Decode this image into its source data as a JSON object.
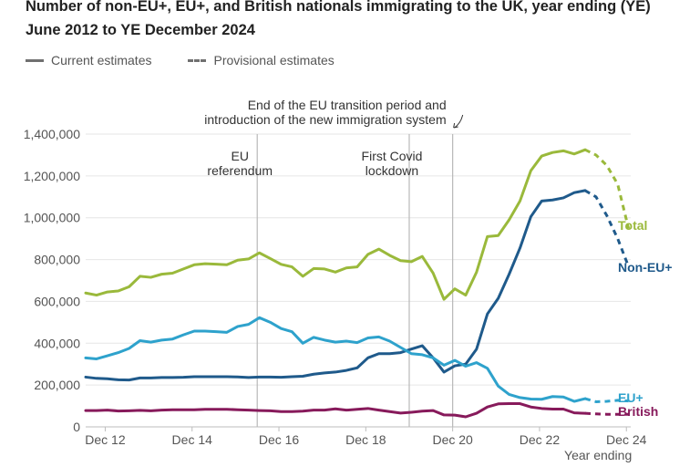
{
  "title": "Number of non-EU+, EU+, and British nationals immigrating to the UK, year ending (YE) June 2012 to YE December 2024",
  "legend": {
    "current": "Current estimates",
    "provisional": "Provisional estimates"
  },
  "chart_data": {
    "type": "line",
    "title": "Number of non-EU+, EU+, and British nationals immigrating to the UK, year ending (YE) June 2012 to YE December 2024",
    "xlabel": "Year ending",
    "ylabel": "",
    "ylim": [
      0,
      1400000
    ],
    "yticks": [
      0,
      200000,
      400000,
      600000,
      800000,
      1000000,
      1200000,
      1400000
    ],
    "ytick_labels": [
      "0",
      "200,000",
      "400,000",
      "600,000",
      "800,000",
      "1,000,000",
      "1,200,000",
      "1,400,000"
    ],
    "x_start": 2012.5,
    "x_step": 0.25,
    "xticks": [
      2012.95,
      2014.95,
      2016.95,
      2018.95,
      2020.95,
      2022.95,
      2024.95
    ],
    "xtick_labels": [
      "Dec 12",
      "Dec 14",
      "Dec 16",
      "Dec 18",
      "Dec 20",
      "Dec 22",
      "Dec 24"
    ],
    "series": [
      {
        "name": "Total",
        "color": "#9ab93b",
        "values": [
          640000,
          630000,
          645000,
          650000,
          670000,
          720000,
          715000,
          730000,
          735000,
          755000,
          775000,
          780000,
          778000,
          775000,
          797000,
          803000,
          832000,
          805000,
          777000,
          765000,
          720000,
          757000,
          755000,
          740000,
          760000,
          765000,
          825000,
          850000,
          820000,
          795000,
          790000,
          815000,
          735000,
          610000,
          660000,
          630000,
          740000,
          910000,
          915000,
          990000,
          1080000,
          1225000,
          1295000,
          1312000,
          1320000,
          1305000,
          1325000
        ],
        "provisional": [
          1325000,
          1300000,
          1250000,
          1160000,
          948000
        ]
      },
      {
        "name": "Non-EU+",
        "color": "#1f5a8b",
        "values": [
          238000,
          232000,
          230000,
          225000,
          224000,
          234000,
          234000,
          236000,
          236000,
          237000,
          240000,
          240000,
          240000,
          240000,
          239000,
          236000,
          238000,
          238000,
          237000,
          240000,
          242000,
          252000,
          258000,
          262000,
          270000,
          282000,
          330000,
          350000,
          350000,
          355000,
          372000,
          388000,
          330000,
          262000,
          292000,
          300000,
          372000,
          540000,
          615000,
          730000,
          855000,
          1005000,
          1080000,
          1085000,
          1095000,
          1120000,
          1130000
        ],
        "provisional": [
          1130000,
          1100000,
          1010000,
          900000,
          766000
        ]
      },
      {
        "name": "EU+",
        "color": "#2ea2cc",
        "values": [
          330000,
          325000,
          340000,
          355000,
          375000,
          412000,
          405000,
          415000,
          420000,
          440000,
          458000,
          458000,
          455000,
          452000,
          480000,
          490000,
          522000,
          500000,
          470000,
          455000,
          400000,
          428000,
          415000,
          405000,
          410000,
          403000,
          425000,
          430000,
          410000,
          380000,
          350000,
          345000,
          330000,
          295000,
          318000,
          290000,
          307000,
          280000,
          195000,
          155000,
          140000,
          133000,
          132000,
          145000,
          143000,
          122000,
          135000
        ],
        "provisional": [
          135000,
          120000,
          122000,
          127000,
          124000
        ]
      },
      {
        "name": "British",
        "color": "#871a5b",
        "values": [
          78000,
          78000,
          80000,
          76000,
          77000,
          79000,
          77000,
          80000,
          82000,
          82000,
          82000,
          84000,
          84000,
          84000,
          82000,
          80000,
          78000,
          77000,
          73000,
          73000,
          75000,
          80000,
          80000,
          86000,
          80000,
          84000,
          88000,
          80000,
          73000,
          66000,
          70000,
          75000,
          78000,
          57000,
          56000,
          48000,
          65000,
          95000,
          110000,
          111000,
          111000,
          95000,
          88000,
          85000,
          85000,
          67000,
          65000
        ],
        "provisional": [
          65000,
          62000,
          60000,
          60000,
          60000
        ]
      }
    ],
    "series_labels": [
      "Total",
      "Non-EU+",
      "EU+",
      "British"
    ],
    "annotations": [
      {
        "x": 2016.45,
        "label": "EU referendum",
        "lines": [
          "EU",
          "referendum"
        ]
      },
      {
        "x": 2019.95,
        "label": "First Covid lockdown",
        "lines": [
          "First Covid",
          "lockdown"
        ]
      },
      {
        "x": 2020.95,
        "label": "End of the EU transition period and introduction of the new immigration system",
        "lines": [
          "End of the EU transition period and",
          "introduction of the new immigration system"
        ]
      }
    ]
  }
}
